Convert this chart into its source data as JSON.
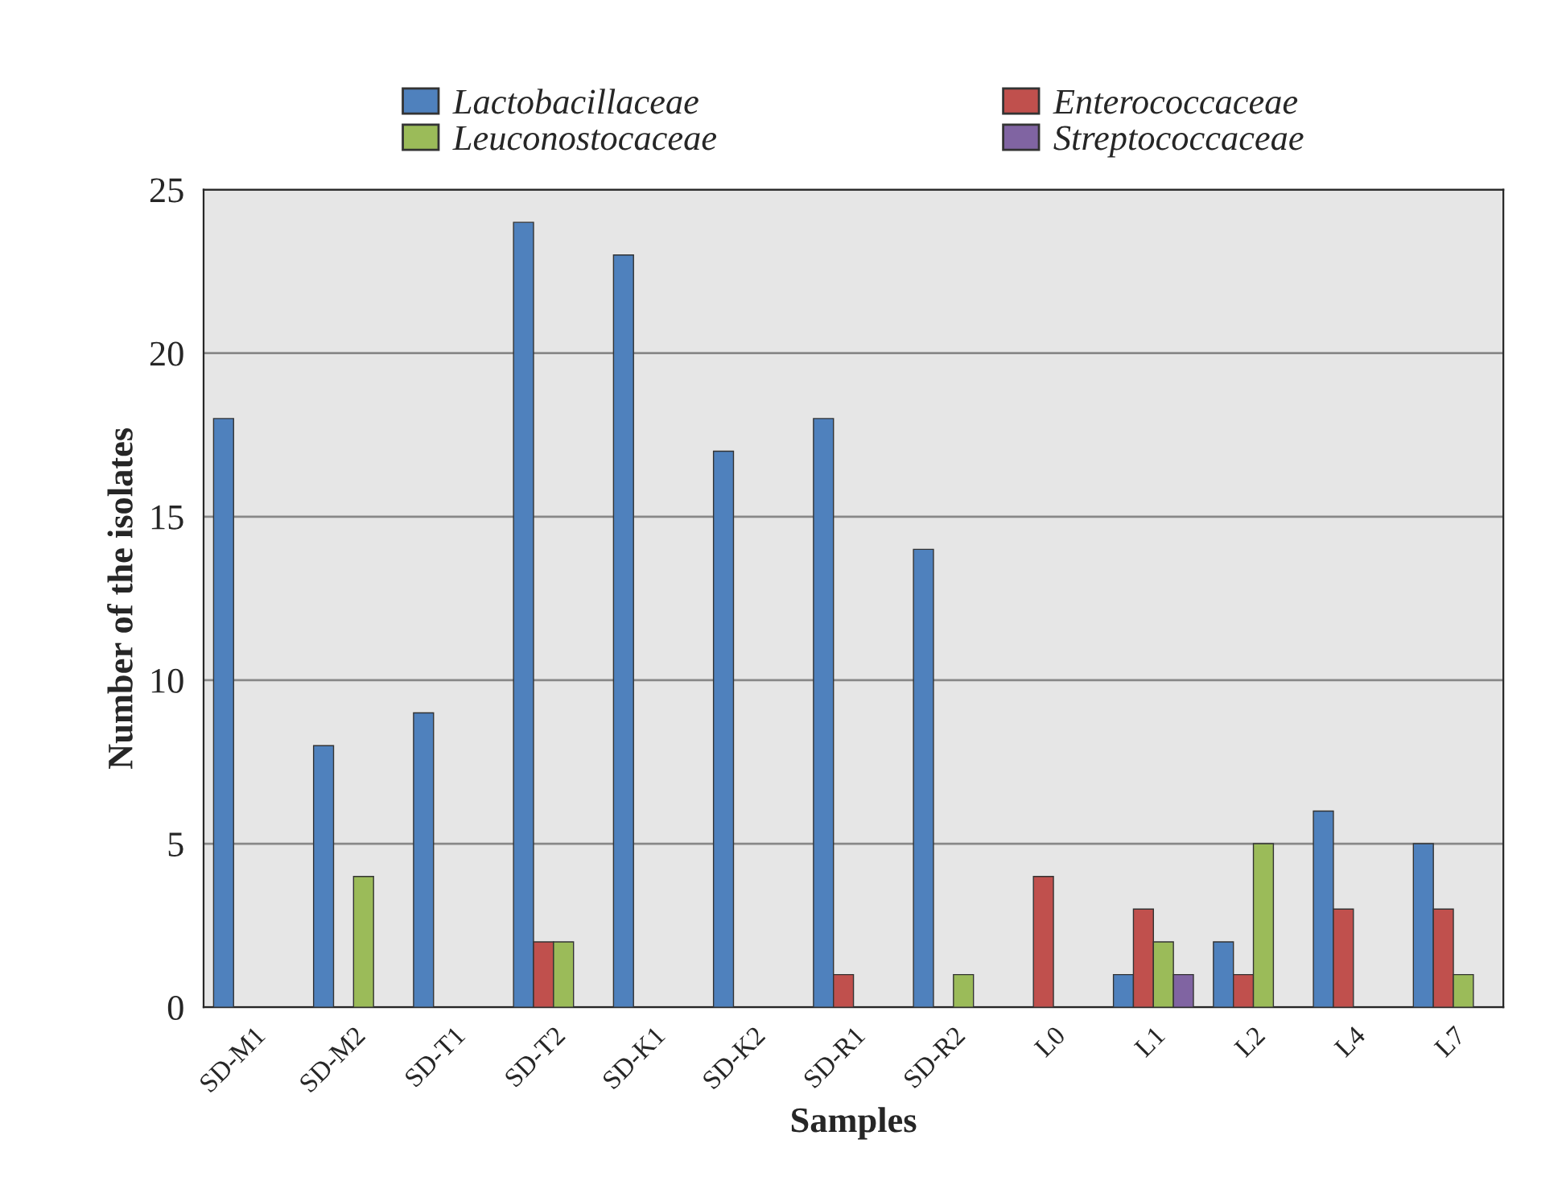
{
  "chart_data": {
    "type": "bar",
    "xlabel": "Samples",
    "ylabel": "Number of the isolates",
    "categories": [
      "SD-M1",
      "SD-M2",
      "SD-T1",
      "SD-T2",
      "SD-K1",
      "SD-K2",
      "SD-R1",
      "SD-R2",
      "L0",
      "L1",
      "L2",
      "L4",
      "L7"
    ],
    "series": [
      {
        "name": "Lactobacillaceae",
        "color": "#4f81bd",
        "values": [
          18,
          8,
          9,
          24,
          23,
          17,
          18,
          14,
          null,
          1,
          2,
          6,
          5
        ]
      },
      {
        "name": "Enterococcaceae",
        "color": "#c0504d",
        "values": [
          null,
          null,
          null,
          2,
          null,
          null,
          1,
          null,
          4,
          3,
          1,
          3,
          3
        ]
      },
      {
        "name": "Leuconostocaceae",
        "color": "#9bbb59",
        "values": [
          null,
          4,
          null,
          2,
          null,
          null,
          null,
          1,
          null,
          2,
          5,
          null,
          1
        ]
      },
      {
        "name": "Streptococcaceae",
        "color": "#8064a2",
        "values": [
          null,
          null,
          null,
          null,
          null,
          null,
          null,
          null,
          null,
          1,
          null,
          null,
          null
        ]
      }
    ],
    "ylim": [
      0,
      25
    ],
    "yticks": [
      0,
      5,
      10,
      15,
      20,
      25
    ],
    "grid": "y",
    "legend": "top"
  }
}
